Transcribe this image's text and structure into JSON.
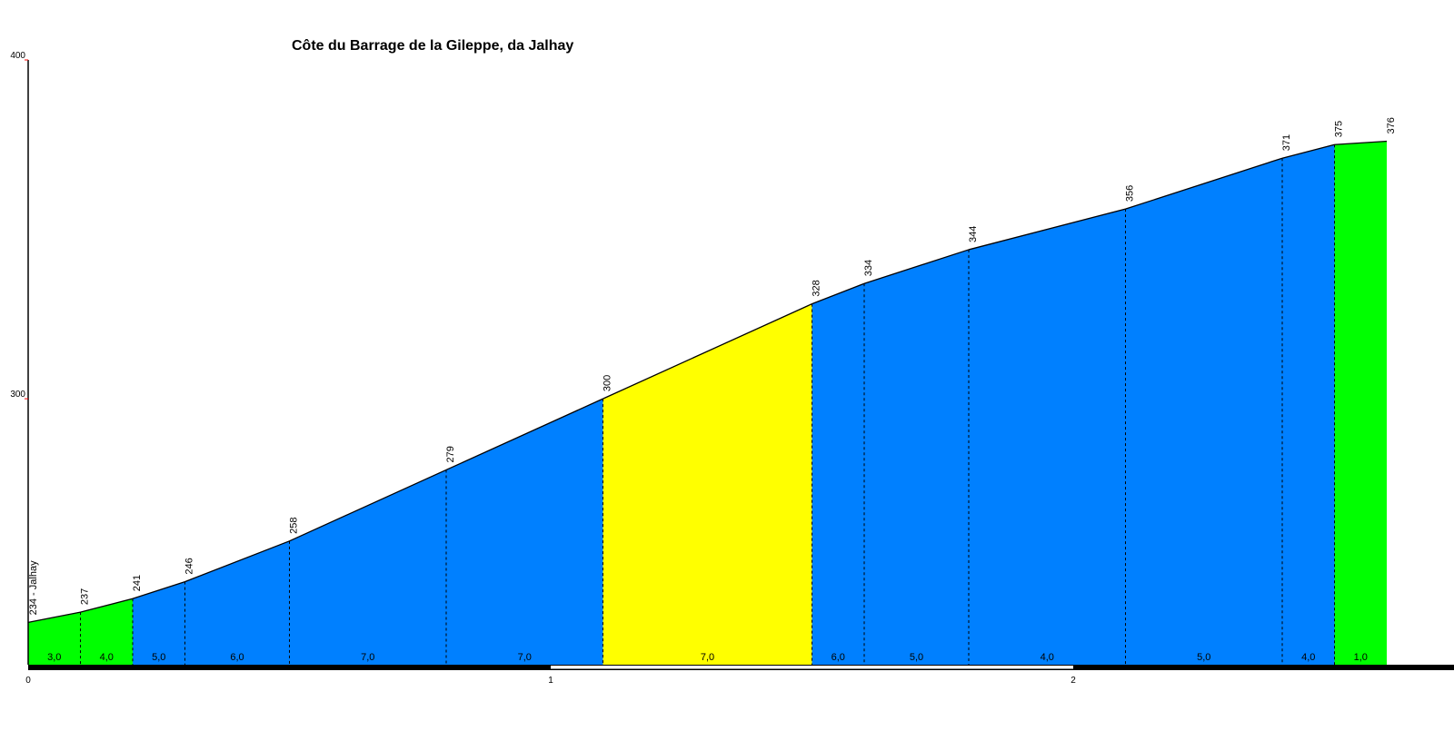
{
  "chart_data": {
    "type": "area",
    "title": "Côte du Barrage de la Gileppe, da Jalhay",
    "xlabel": "",
    "ylabel": "",
    "xlim": [
      0,
      2.72
    ],
    "ylim": [
      221.5,
      400
    ],
    "x_ticks": [
      "0",
      "1",
      "2"
    ],
    "y_ticks": [
      "300",
      "400"
    ],
    "grid": false,
    "points": [
      {
        "km": 0.0,
        "elev": 234,
        "label": "234 - Jalhay"
      },
      {
        "km": 0.1,
        "elev": 237,
        "label": "237"
      },
      {
        "km": 0.2,
        "elev": 241,
        "label": "241"
      },
      {
        "km": 0.3,
        "elev": 246,
        "label": "246"
      },
      {
        "km": 0.5,
        "elev": 258,
        "label": "258"
      },
      {
        "km": 0.8,
        "elev": 279,
        "label": "279"
      },
      {
        "km": 1.1,
        "elev": 300,
        "label": "300"
      },
      {
        "km": 1.5,
        "elev": 328,
        "label": "328"
      },
      {
        "km": 1.6,
        "elev": 334,
        "label": "334"
      },
      {
        "km": 1.8,
        "elev": 344,
        "label": "344"
      },
      {
        "km": 2.1,
        "elev": 356,
        "label": "356"
      },
      {
        "km": 2.4,
        "elev": 371,
        "label": "371"
      },
      {
        "km": 2.5,
        "elev": 375,
        "label": "375"
      },
      {
        "km": 2.6,
        "elev": 376,
        "label": "376"
      }
    ],
    "segments": [
      {
        "gradient": "3,0",
        "color": "#00ff00"
      },
      {
        "gradient": "4,0",
        "color": "#00ff00"
      },
      {
        "gradient": "5,0",
        "color": "#0080ff"
      },
      {
        "gradient": "6,0",
        "color": "#0080ff"
      },
      {
        "gradient": "7,0",
        "color": "#0080ff"
      },
      {
        "gradient": "7,0",
        "color": "#0080ff"
      },
      {
        "gradient": "7,0",
        "color": "#ffff00"
      },
      {
        "gradient": "6,0",
        "color": "#0080ff"
      },
      {
        "gradient": "5,0",
        "color": "#0080ff"
      },
      {
        "gradient": "4,0",
        "color": "#0080ff"
      },
      {
        "gradient": "5,0",
        "color": "#0080ff"
      },
      {
        "gradient": "4,0",
        "color": "#0080ff"
      },
      {
        "gradient": "1,0",
        "color": "#00ff00"
      }
    ]
  }
}
